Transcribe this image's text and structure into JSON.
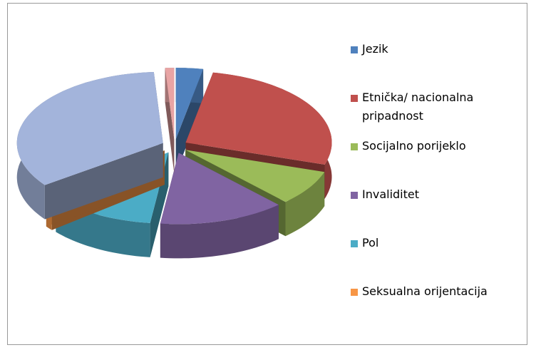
{
  "chart_data": {
    "type": "pie3d",
    "categories": [
      "Jezik",
      "Etnička/ nacionalna pripadnost",
      "Socijalno porijeklo",
      "Invaliditet",
      "Pol",
      "Seksualna orijentacija",
      null,
      null
    ],
    "values": [
      3,
      27,
      8,
      14,
      12,
      1,
      34,
      1
    ],
    "colors": [
      "#4f81bd",
      "#c0504d",
      "#9bbb59",
      "#8064a2",
      "#4bacc6",
      "#f79646",
      "#a3b4db",
      "#e8a4a4"
    ],
    "legend": "right"
  }
}
